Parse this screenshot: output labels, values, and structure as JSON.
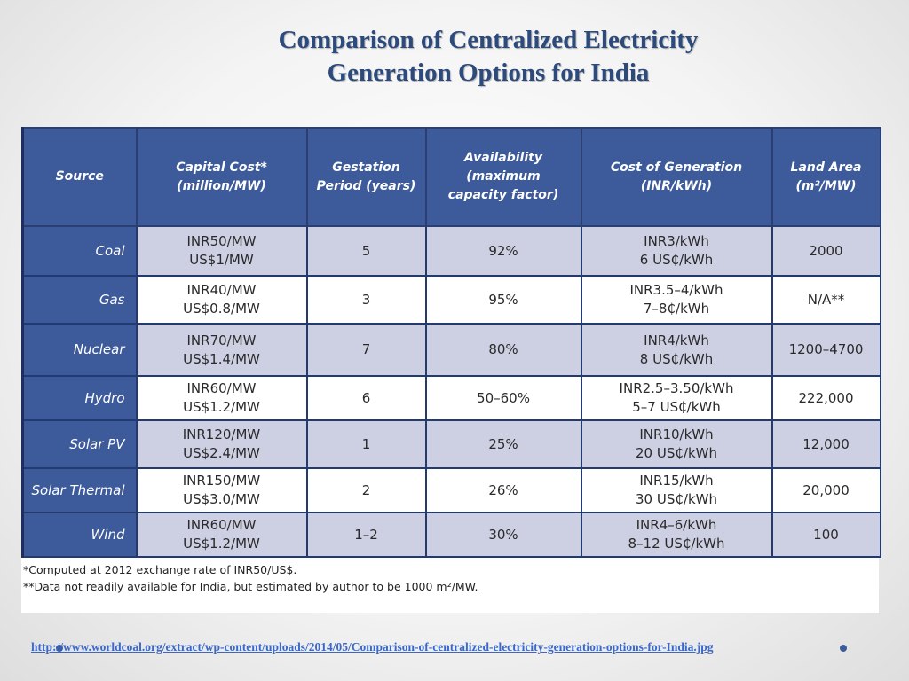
{
  "title": {
    "line1": "Comparison of Centralized Electricity",
    "line2": "Generation Options for India"
  },
  "table": {
    "headers": [
      [
        "Source"
      ],
      [
        "Capital Cost*",
        "(million/MW)"
      ],
      [
        "Gestation",
        "Period (years)"
      ],
      [
        "Availability",
        "(maximum",
        "capacity factor)"
      ],
      [
        "Cost of Generation",
        "(INR/kWh)"
      ],
      [
        "Land Area",
        "(m²/MW)"
      ]
    ],
    "rows": [
      {
        "source": "Coal",
        "capital": [
          "INR50/MW",
          "US$1/MW"
        ],
        "gestation": "5",
        "availability": "92%",
        "cost": [
          "INR3/kWh",
          "6 US₵/kWh"
        ],
        "land": "2000"
      },
      {
        "source": "Gas",
        "capital": [
          "INR40/MW",
          "US$0.8/MW"
        ],
        "gestation": "3",
        "availability": "95%",
        "cost": [
          "INR3.5–4/kWh",
          "7–8₵/kWh"
        ],
        "land": "N/A**"
      },
      {
        "source": "Nuclear",
        "capital": [
          "INR70/MW",
          "US$1.4/MW"
        ],
        "gestation": "7",
        "availability": "80%",
        "cost": [
          "INR4/kWh",
          "8 US₵/kWh"
        ],
        "land": "1200–4700"
      },
      {
        "source": "Hydro",
        "capital": [
          "INR60/MW",
          "US$1.2/MW"
        ],
        "gestation": "6",
        "availability": "50–60%",
        "cost": [
          "INR2.5–3.50/kWh",
          "5–7 US₵/kWh"
        ],
        "land": "222,000"
      },
      {
        "source": "Solar PV",
        "capital": [
          "INR120/MW",
          "US$2.4/MW"
        ],
        "gestation": "1",
        "availability": "25%",
        "cost": [
          "INR10/kWh",
          "20 US₵/kWh"
        ],
        "land": "12,000"
      },
      {
        "source": "Solar Thermal",
        "capital": [
          "INR150/MW",
          "US$3.0/MW"
        ],
        "gestation": "2",
        "availability": "26%",
        "cost": [
          "INR15/kWh",
          "30 US₵/kWh"
        ],
        "land": "20,000"
      },
      {
        "source": "Wind",
        "capital": [
          "INR60/MW",
          "US$1.2/MW"
        ],
        "gestation": "1–2",
        "availability": "30%",
        "cost": [
          "INR4–6/kWh",
          "8–12 US₵/kWh"
        ],
        "land": "100"
      }
    ],
    "row_heights": [
      56,
      54,
      59,
      50,
      54,
      50,
      50
    ]
  },
  "footnotes": [
    "*Computed at 2012 exchange rate of INR50/US$.",
    "**Data not readily available for India, but estimated by author to be 1000 m²/MW."
  ],
  "source_link": "http://www.worldcoal.org/extract/wp-content/uploads/2014/05/Comparison-of-centralized-electricity-generation-options-for-India.jpg",
  "colors": {
    "title": "#2c4a7c",
    "header_bg": "#3d5a9a",
    "row_shade": "#cdcfe3",
    "link": "#3a67c8"
  }
}
